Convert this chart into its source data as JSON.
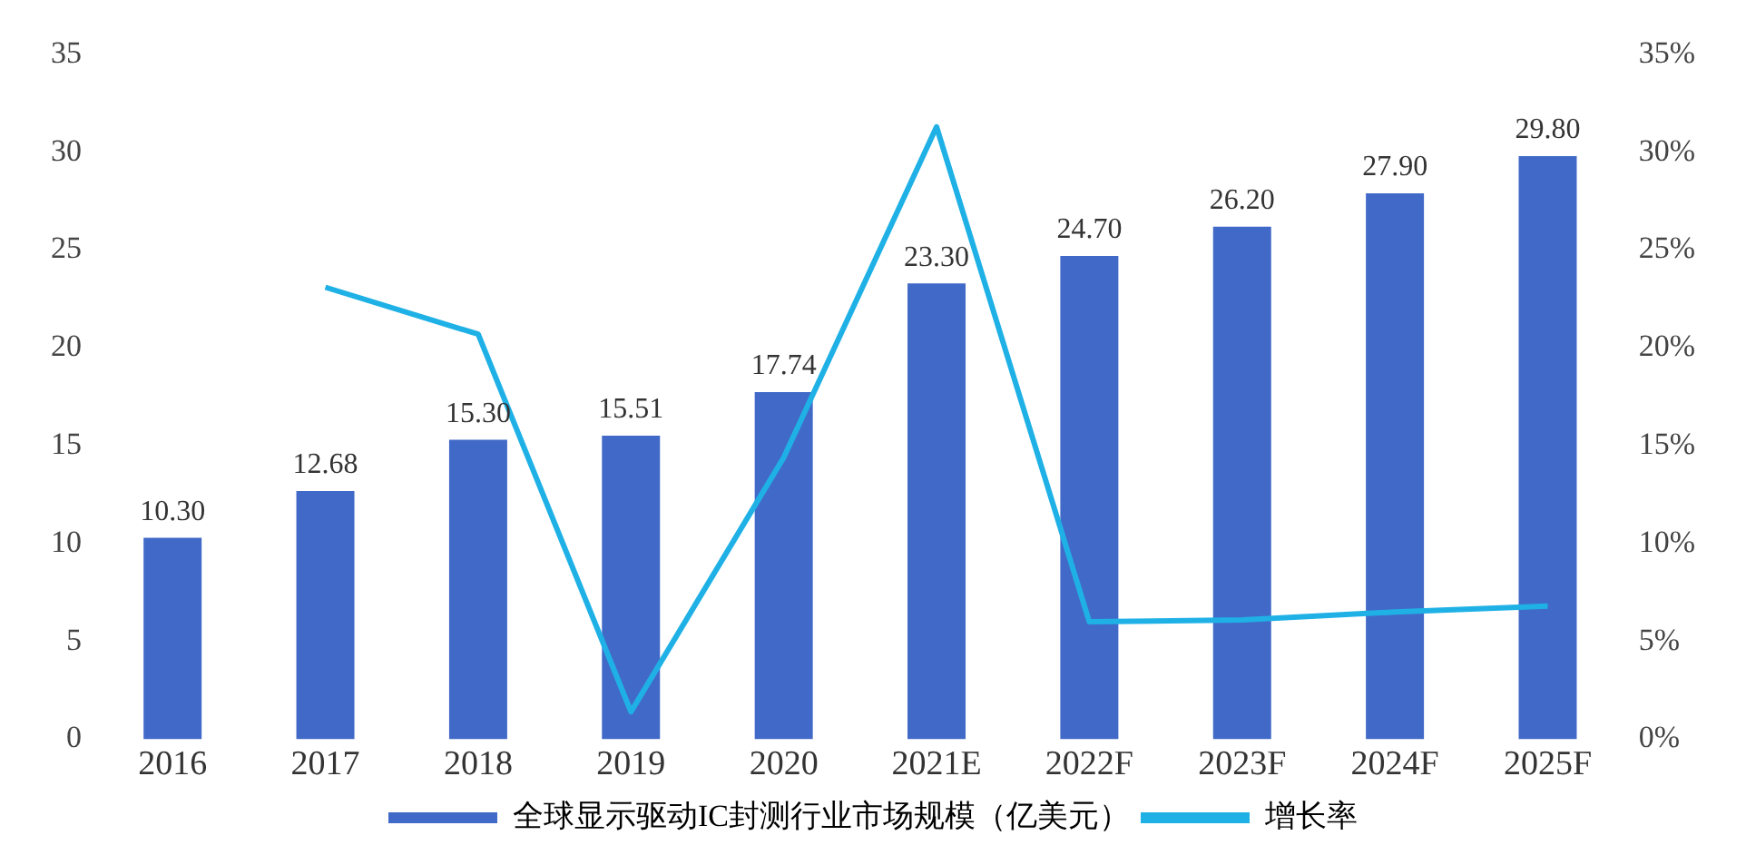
{
  "chart_data": {
    "type": "bar",
    "categories": [
      "2016",
      "2017",
      "2018",
      "2019",
      "2020",
      "2021E",
      "2022F",
      "2023F",
      "2024F",
      "2025F"
    ],
    "series": [
      {
        "name": "全球显示驱动IC封测行业市场规模（亿美元）",
        "color": "#4169c8",
        "values": [
          10.3,
          12.68,
          15.3,
          15.51,
          17.74,
          23.3,
          24.7,
          26.2,
          27.9,
          29.8
        ],
        "value_labels": [
          "10.30",
          "12.68",
          "15.30",
          "15.51",
          "17.74",
          "23.30",
          "24.70",
          "26.20",
          "27.90",
          "29.80"
        ]
      },
      {
        "name": "增长率",
        "type": "line",
        "axis": "y2",
        "color": "#1fb1e6",
        "values": [
          null,
          23.1,
          20.7,
          1.4,
          14.4,
          31.3,
          6.0,
          6.1,
          6.5,
          6.8
        ]
      }
    ],
    "ylim": [
      0,
      35
    ],
    "yticks": [
      0,
      5,
      10,
      15,
      20,
      25,
      30,
      35
    ],
    "y2lim": [
      0,
      35
    ],
    "y2ticks": [
      {
        "value": 0,
        "label": "0%"
      },
      {
        "value": 5,
        "label": "5%"
      },
      {
        "value": 10,
        "label": "10%"
      },
      {
        "value": 15,
        "label": "15%"
      },
      {
        "value": 20,
        "label": "20%"
      },
      {
        "value": 25,
        "label": "25%"
      },
      {
        "value": 30,
        "label": "30%"
      },
      {
        "value": 35,
        "label": "35%"
      }
    ],
    "grid": false,
    "legend": "bottom",
    "marker": "none",
    "line_style": "solid"
  }
}
